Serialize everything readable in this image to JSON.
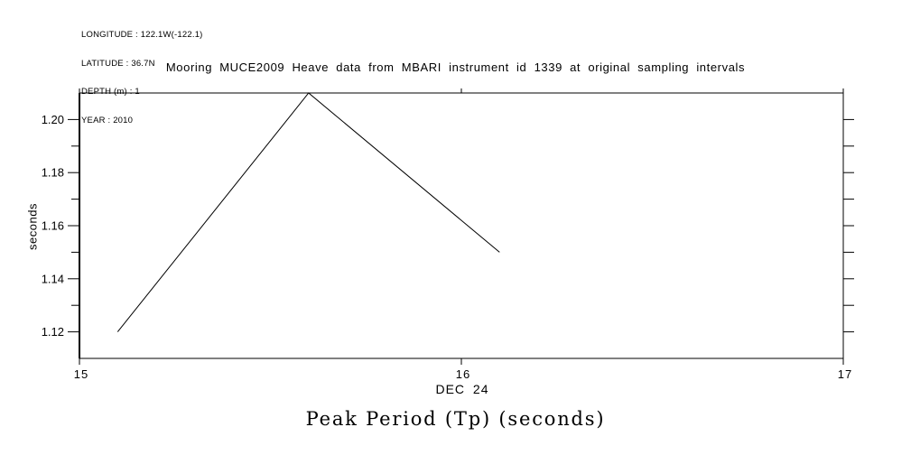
{
  "page": {
    "background_color": "#ffffff",
    "ink_color": "#000000"
  },
  "metadata": {
    "longitude": "LONGITUDE : 122.1W(-122.1)",
    "latitude": "LATITUDE : 36.7N",
    "depth": "DEPTH (m) : 1",
    "year": "YEAR : 2010"
  },
  "chart_data": {
    "type": "line",
    "title": "Mooring MUCE2009 Heave data from MBARI instrument id 1339 at original sampling intervals",
    "footer_label": "Peak Period (Tp) (seconds)",
    "grid": false,
    "legend": false,
    "x_axis": {
      "date_label": "DEC 24",
      "lim": [
        15,
        17
      ],
      "major_ticks": [
        15,
        16,
        17
      ],
      "tick_labels": [
        "15",
        "16",
        "17"
      ]
    },
    "y_axis": {
      "label": "seconds",
      "lim": [
        1.11,
        1.21
      ],
      "major_ticks": [
        1.12,
        1.14,
        1.16,
        1.18,
        1.2
      ],
      "minor_ticks": [
        1.13,
        1.15,
        1.17,
        1.19
      ],
      "tick_labels": [
        "1.12",
        "1.14",
        "1.16",
        "1.18",
        "1.20"
      ]
    },
    "series": [
      {
        "name": "peak-period",
        "x": [
          15.1,
          15.6,
          16.1
        ],
        "y": [
          1.12,
          1.21,
          1.15
        ],
        "color": "#000000"
      }
    ]
  }
}
